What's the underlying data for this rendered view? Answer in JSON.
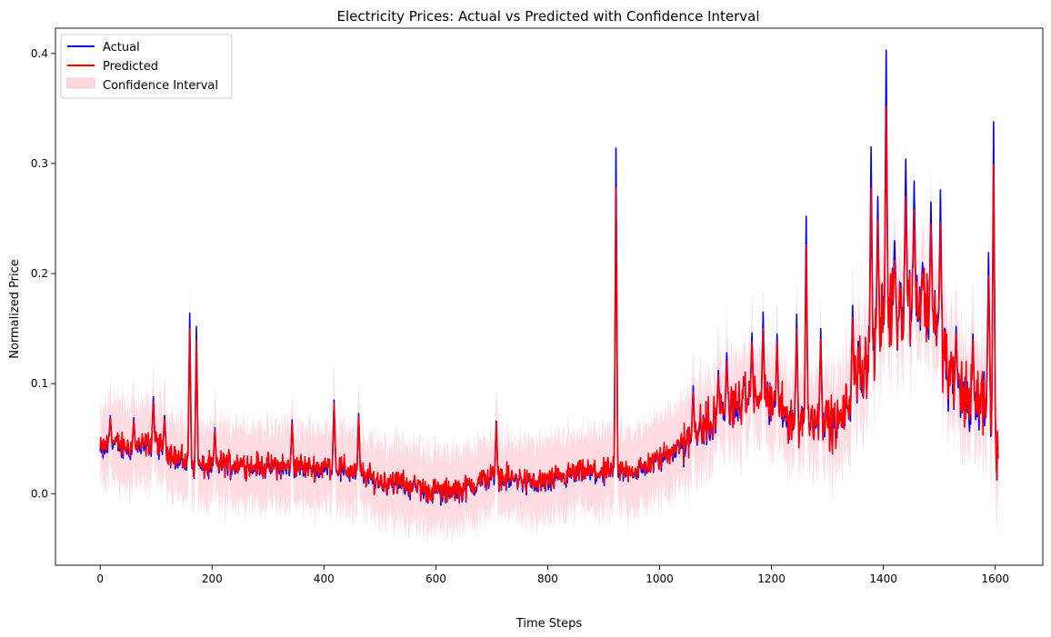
{
  "chart_data": {
    "type": "line",
    "title": "Electricity Prices: Actual vs Predicted with Confidence Interval",
    "xlabel": "Time Steps",
    "ylabel": "Normalized Price",
    "xlim": [
      -80,
      1685
    ],
    "ylim": [
      -0.065,
      0.423
    ],
    "xticks": [
      0,
      200,
      400,
      600,
      800,
      1000,
      1200,
      1400,
      1600
    ],
    "xtick_labels": [
      "0",
      "200",
      "400",
      "600",
      "800",
      "1000",
      "1200",
      "1400",
      "1600"
    ],
    "yticks": [
      0.0,
      0.1,
      0.2,
      0.3,
      0.4
    ],
    "ytick_labels": [
      "0.0",
      "0.1",
      "0.2",
      "0.3",
      "0.4"
    ],
    "grid": false,
    "legend_position": "top-left",
    "n_points": 1607,
    "series": [
      {
        "name": "Actual",
        "color": "#0000ff"
      },
      {
        "name": "Predicted",
        "color": "#ff0000"
      },
      {
        "name": "Confidence Interval",
        "color": "#ffc0cb",
        "type": "band"
      }
    ],
    "anchors": [
      [
        0,
        0.038
      ],
      [
        20,
        0.045
      ],
      [
        60,
        0.04
      ],
      [
        100,
        0.045
      ],
      [
        140,
        0.03
      ],
      [
        180,
        0.022
      ],
      [
        220,
        0.026
      ],
      [
        260,
        0.025
      ],
      [
        300,
        0.023
      ],
      [
        340,
        0.024
      ],
      [
        380,
        0.022
      ],
      [
        420,
        0.023
      ],
      [
        460,
        0.018
      ],
      [
        500,
        0.01
      ],
      [
        540,
        0.008
      ],
      [
        580,
        0.002
      ],
      [
        620,
        0.0
      ],
      [
        660,
        0.005
      ],
      [
        700,
        0.015
      ],
      [
        740,
        0.012
      ],
      [
        780,
        0.008
      ],
      [
        820,
        0.012
      ],
      [
        860,
        0.018
      ],
      [
        900,
        0.018
      ],
      [
        960,
        0.02
      ],
      [
        1000,
        0.03
      ],
      [
        1040,
        0.045
      ],
      [
        1080,
        0.06
      ],
      [
        1120,
        0.075
      ],
      [
        1160,
        0.085
      ],
      [
        1200,
        0.08
      ],
      [
        1240,
        0.065
      ],
      [
        1280,
        0.068
      ],
      [
        1320,
        0.06
      ],
      [
        1360,
        0.11
      ],
      [
        1400,
        0.16
      ],
      [
        1440,
        0.175
      ],
      [
        1480,
        0.17
      ],
      [
        1500,
        0.15
      ],
      [
        1520,
        0.1
      ],
      [
        1560,
        0.08
      ],
      [
        1590,
        0.09
      ],
      [
        1607,
        0.03
      ]
    ],
    "spikes": [
      {
        "x": 18,
        "actual": 0.071,
        "predicted": 0.068
      },
      {
        "x": 60,
        "actual": 0.069,
        "predicted": 0.066
      },
      {
        "x": 95,
        "actual": 0.088,
        "predicted": 0.083
      },
      {
        "x": 115,
        "actual": 0.071,
        "predicted": 0.068
      },
      {
        "x": 160,
        "actual": 0.164,
        "predicted": 0.15
      },
      {
        "x": 172,
        "actual": 0.152,
        "predicted": 0.14
      },
      {
        "x": 205,
        "actual": 0.06,
        "predicted": 0.058
      },
      {
        "x": 343,
        "actual": 0.067,
        "predicted": 0.064
      },
      {
        "x": 418,
        "actual": 0.085,
        "predicted": 0.082
      },
      {
        "x": 462,
        "actual": 0.073,
        "predicted": 0.07
      },
      {
        "x": 708,
        "actual": 0.066,
        "predicted": 0.064
      },
      {
        "x": 922,
        "actual": 0.314,
        "predicted": 0.278
      },
      {
        "x": 1060,
        "actual": 0.098,
        "predicted": 0.092
      },
      {
        "x": 1105,
        "actual": 0.112,
        "predicted": 0.108
      },
      {
        "x": 1120,
        "actual": 0.128,
        "predicted": 0.12
      },
      {
        "x": 1165,
        "actual": 0.146,
        "predicted": 0.138
      },
      {
        "x": 1185,
        "actual": 0.165,
        "predicted": 0.15
      },
      {
        "x": 1210,
        "actual": 0.145,
        "predicted": 0.138
      },
      {
        "x": 1245,
        "actual": 0.163,
        "predicted": 0.15
      },
      {
        "x": 1262,
        "actual": 0.252,
        "predicted": 0.226
      },
      {
        "x": 1288,
        "actual": 0.15,
        "predicted": 0.14
      },
      {
        "x": 1345,
        "actual": 0.171,
        "predicted": 0.16
      },
      {
        "x": 1378,
        "actual": 0.315,
        "predicted": 0.278
      },
      {
        "x": 1390,
        "actual": 0.27,
        "predicted": 0.248
      },
      {
        "x": 1405,
        "actual": 0.403,
        "predicted": 0.352
      },
      {
        "x": 1420,
        "actual": 0.23,
        "predicted": 0.212
      },
      {
        "x": 1440,
        "actual": 0.304,
        "predicted": 0.27
      },
      {
        "x": 1455,
        "actual": 0.284,
        "predicted": 0.258
      },
      {
        "x": 1470,
        "actual": 0.21,
        "predicted": 0.2
      },
      {
        "x": 1485,
        "actual": 0.265,
        "predicted": 0.245
      },
      {
        "x": 1502,
        "actual": 0.276,
        "predicted": 0.247
      },
      {
        "x": 1530,
        "actual": 0.152,
        "predicted": 0.145
      },
      {
        "x": 1560,
        "actual": 0.145,
        "predicted": 0.14
      },
      {
        "x": 1588,
        "actual": 0.219,
        "predicted": 0.198
      },
      {
        "x": 1597,
        "actual": 0.338,
        "predicted": 0.299
      }
    ]
  }
}
